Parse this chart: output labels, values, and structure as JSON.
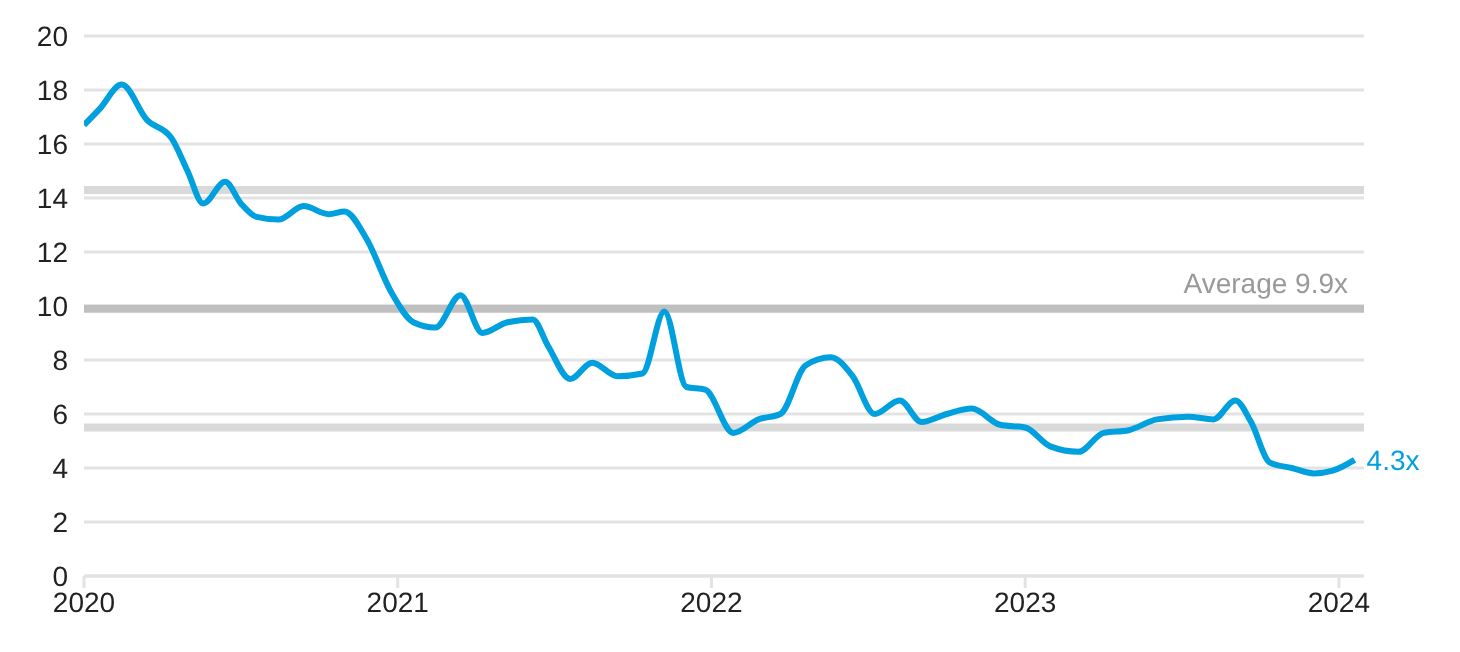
{
  "chart_data": {
    "type": "line",
    "x": [
      2020.0,
      2020.05,
      2020.12,
      2020.2,
      2020.28,
      2020.33,
      2020.38,
      2020.45,
      2020.5,
      2020.55,
      2020.62,
      2020.7,
      2020.78,
      2020.83,
      2020.9,
      2020.98,
      2021.05,
      2021.12,
      2021.2,
      2021.27,
      2021.35,
      2021.43,
      2021.48,
      2021.55,
      2021.62,
      2021.7,
      2021.78,
      2021.85,
      2021.92,
      2021.98,
      2022.07,
      2022.15,
      2022.22,
      2022.3,
      2022.38,
      2022.45,
      2022.52,
      2022.6,
      2022.67,
      2022.75,
      2022.83,
      2022.92,
      2023.0,
      2023.08,
      2023.17,
      2023.25,
      2023.33,
      2023.42,
      2023.52,
      2023.6,
      2023.67,
      2023.72,
      2023.78,
      2023.85,
      2023.92,
      2023.98,
      2024.05
    ],
    "series": [
      {
        "color": "#00a0df",
        "values": [
          16.7,
          17.3,
          18.2,
          16.9,
          16.2,
          15.0,
          13.8,
          14.6,
          13.8,
          13.3,
          13.2,
          13.7,
          13.4,
          13.5,
          12.5,
          10.5,
          9.4,
          9.2,
          10.4,
          9.0,
          9.4,
          9.5,
          8.5,
          7.3,
          7.9,
          7.4,
          7.5,
          9.8,
          7.0,
          6.9,
          5.3,
          5.8,
          6.0,
          7.8,
          8.1,
          7.4,
          6.0,
          6.5,
          5.7,
          6.0,
          6.2,
          5.6,
          5.5,
          4.8,
          4.6,
          5.3,
          5.4,
          5.8,
          5.9,
          5.8,
          6.5,
          5.7,
          4.2,
          4.0,
          3.8,
          3.9,
          4.3
        ]
      }
    ],
    "xlim": [
      2020,
      2024.08
    ],
    "xticks": [
      2020,
      2021,
      2022,
      2023,
      2024
    ],
    "ylim": [
      0,
      20
    ],
    "yticks": [
      0,
      2,
      4,
      6,
      8,
      10,
      12,
      14,
      16,
      18,
      20
    ],
    "grid": "y",
    "marker": "none",
    "line_style": "solid",
    "ref_lines": [
      {
        "axis": "y",
        "value": 14.3,
        "label": null,
        "color": "#d9d9d9"
      },
      {
        "axis": "y",
        "value": 9.9,
        "label": "Average 9.9x",
        "color": "#bfbfbf"
      },
      {
        "axis": "y",
        "value": 5.5,
        "label": null,
        "color": "#d9d9d9"
      }
    ],
    "annotations": [
      {
        "text": "4.3x",
        "x": 2024.05,
        "y": 4.3
      }
    ]
  }
}
